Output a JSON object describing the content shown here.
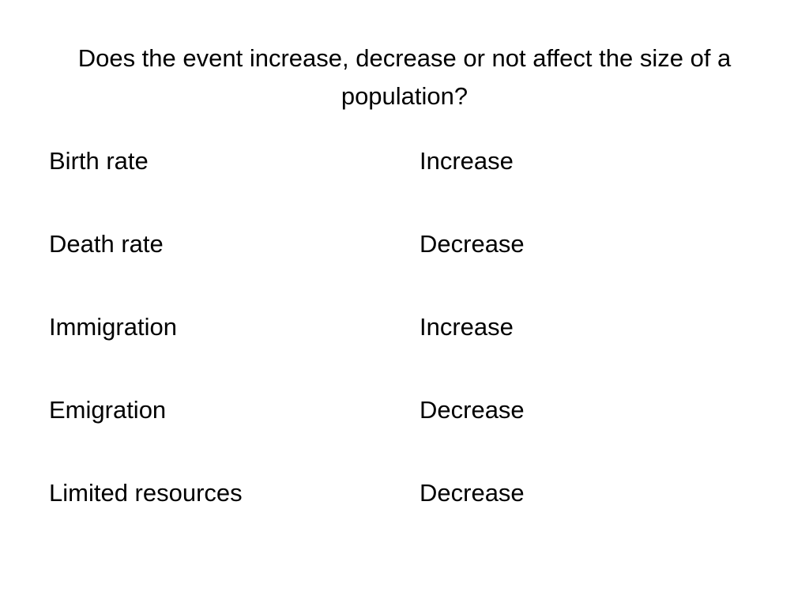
{
  "slide": {
    "title": "Does the event increase, decrease or not affect the size of a population?",
    "rows": [
      {
        "event": "Birth rate",
        "effect": "Increase"
      },
      {
        "event": "Death rate",
        "effect": "Decrease"
      },
      {
        "event": "Immigration",
        "effect": "Increase"
      },
      {
        "event": "Emigration",
        "effect": "Decrease"
      },
      {
        "event": "Limited resources",
        "effect": "Decrease"
      }
    ]
  }
}
